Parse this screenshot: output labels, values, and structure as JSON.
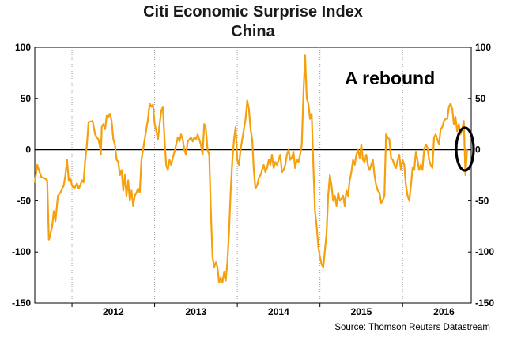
{
  "chart_data": {
    "type": "line",
    "title": "Citi Economic Surprise Index",
    "subtitle": "China",
    "source": "Source: Thomson Reuters Datastream",
    "annotation": "A rebound",
    "ylim": [
      -150,
      100
    ],
    "yticks": [
      100,
      50,
      0,
      -50,
      -100,
      -150
    ],
    "xlim": [
      2011.55,
      2016.83
    ],
    "year_labels": [
      "2012",
      "2013",
      "2014",
      "2015",
      "2016"
    ],
    "year_boundaries": [
      2012,
      2013,
      2014,
      2015,
      2016
    ],
    "grid": "vertical dotted lines at year boundaries",
    "line_color": "#f5a00f",
    "series": [
      {
        "values": [
          [
            2011.55,
            -32
          ],
          [
            2011.58,
            -15
          ],
          [
            2011.6,
            -20
          ],
          [
            2011.63,
            -27
          ],
          [
            2011.67,
            -28
          ],
          [
            2011.7,
            -30
          ],
          [
            2011.72,
            -88
          ],
          [
            2011.74,
            -82
          ],
          [
            2011.76,
            -75
          ],
          [
            2011.78,
            -60
          ],
          [
            2011.8,
            -70
          ],
          [
            2011.83,
            -45
          ],
          [
            2011.86,
            -42
          ],
          [
            2011.9,
            -35
          ],
          [
            2011.92,
            -25
          ],
          [
            2011.94,
            -10
          ],
          [
            2011.96,
            -30
          ],
          [
            2011.98,
            -28
          ],
          [
            2012.0,
            -35
          ],
          [
            2012.03,
            -38
          ],
          [
            2012.06,
            -33
          ],
          [
            2012.08,
            -38
          ],
          [
            2012.1,
            -35
          ],
          [
            2012.12,
            -30
          ],
          [
            2012.14,
            -32
          ],
          [
            2012.16,
            -10
          ],
          [
            2012.18,
            5
          ],
          [
            2012.2,
            27
          ],
          [
            2012.25,
            28
          ],
          [
            2012.28,
            15
          ],
          [
            2012.3,
            12
          ],
          [
            2012.32,
            10
          ],
          [
            2012.34,
            2
          ],
          [
            2012.35,
            -5
          ],
          [
            2012.36,
            22
          ],
          [
            2012.38,
            25
          ],
          [
            2012.4,
            20
          ],
          [
            2012.42,
            33
          ],
          [
            2012.44,
            32
          ],
          [
            2012.46,
            35
          ],
          [
            2012.48,
            28
          ],
          [
            2012.5,
            10
          ],
          [
            2012.52,
            5
          ],
          [
            2012.54,
            -10
          ],
          [
            2012.56,
            -12
          ],
          [
            2012.58,
            -25
          ],
          [
            2012.6,
            -20
          ],
          [
            2012.62,
            -40
          ],
          [
            2012.64,
            -25
          ],
          [
            2012.66,
            -45
          ],
          [
            2012.68,
            -30
          ],
          [
            2012.7,
            -50
          ],
          [
            2012.72,
            -40
          ],
          [
            2012.74,
            -55
          ],
          [
            2012.76,
            -45
          ],
          [
            2012.78,
            -42
          ],
          [
            2012.8,
            -38
          ],
          [
            2012.82,
            -42
          ],
          [
            2012.84,
            -10
          ],
          [
            2012.86,
            0
          ],
          [
            2012.88,
            10
          ],
          [
            2012.9,
            20
          ],
          [
            2012.92,
            30
          ],
          [
            2012.94,
            45
          ],
          [
            2012.96,
            42
          ],
          [
            2012.98,
            44
          ],
          [
            2013.0,
            25
          ],
          [
            2013.02,
            18
          ],
          [
            2013.04,
            10
          ],
          [
            2013.06,
            25
          ],
          [
            2013.08,
            38
          ],
          [
            2013.1,
            42
          ],
          [
            2013.12,
            10
          ],
          [
            2013.14,
            -15
          ],
          [
            2013.16,
            -20
          ],
          [
            2013.18,
            -10
          ],
          [
            2013.2,
            -15
          ],
          [
            2013.22,
            -8
          ],
          [
            2013.24,
            -2
          ],
          [
            2013.26,
            5
          ],
          [
            2013.28,
            12
          ],
          [
            2013.3,
            8
          ],
          [
            2013.32,
            15
          ],
          [
            2013.34,
            10
          ],
          [
            2013.36,
            0
          ],
          [
            2013.38,
            -5
          ],
          [
            2013.4,
            8
          ],
          [
            2013.42,
            10
          ],
          [
            2013.44,
            12
          ],
          [
            2013.46,
            8
          ],
          [
            2013.48,
            12
          ],
          [
            2013.5,
            10
          ],
          [
            2013.52,
            15
          ],
          [
            2013.54,
            10
          ],
          [
            2013.56,
            5
          ],
          [
            2013.58,
            -5
          ],
          [
            2013.6,
            25
          ],
          [
            2013.62,
            20
          ],
          [
            2013.64,
            0
          ],
          [
            2013.66,
            -5
          ],
          [
            2013.68,
            -60
          ],
          [
            2013.7,
            -105
          ],
          [
            2013.72,
            -115
          ],
          [
            2013.74,
            -110
          ],
          [
            2013.76,
            -115
          ],
          [
            2013.78,
            -130
          ],
          [
            2013.8,
            -125
          ],
          [
            2013.82,
            -130
          ],
          [
            2013.84,
            -120
          ],
          [
            2013.86,
            -128
          ],
          [
            2013.88,
            -110
          ],
          [
            2013.9,
            -80
          ],
          [
            2013.92,
            -40
          ],
          [
            2013.94,
            -10
          ],
          [
            2013.96,
            10
          ],
          [
            2013.98,
            22
          ],
          [
            2014.0,
            -10
          ],
          [
            2014.02,
            -15
          ],
          [
            2014.04,
            0
          ],
          [
            2014.06,
            10
          ],
          [
            2014.08,
            20
          ],
          [
            2014.1,
            30
          ],
          [
            2014.12,
            48
          ],
          [
            2014.14,
            40
          ],
          [
            2014.16,
            20
          ],
          [
            2014.18,
            10
          ],
          [
            2014.2,
            -20
          ],
          [
            2014.22,
            -38
          ],
          [
            2014.24,
            -35
          ],
          [
            2014.26,
            -28
          ],
          [
            2014.28,
            -25
          ],
          [
            2014.3,
            -20
          ],
          [
            2014.32,
            -15
          ],
          [
            2014.34,
            -22
          ],
          [
            2014.36,
            -18
          ],
          [
            2014.38,
            -10
          ],
          [
            2014.4,
            -15
          ],
          [
            2014.42,
            -5
          ],
          [
            2014.44,
            -18
          ],
          [
            2014.46,
            -12
          ],
          [
            2014.48,
            -15
          ],
          [
            2014.5,
            -10
          ],
          [
            2014.52,
            -5
          ],
          [
            2014.54,
            -22
          ],
          [
            2014.56,
            -20
          ],
          [
            2014.58,
            -15
          ],
          [
            2014.6,
            -5
          ],
          [
            2014.62,
            0
          ],
          [
            2014.64,
            -10
          ],
          [
            2014.66,
            -8
          ],
          [
            2014.68,
            -2
          ],
          [
            2014.7,
            -18
          ],
          [
            2014.72,
            -10
          ],
          [
            2014.74,
            -12
          ],
          [
            2014.76,
            -5
          ],
          [
            2014.78,
            5
          ],
          [
            2014.8,
            55
          ],
          [
            2014.82,
            92
          ],
          [
            2014.84,
            50
          ],
          [
            2014.86,
            45
          ],
          [
            2014.88,
            30
          ],
          [
            2014.9,
            35
          ],
          [
            2014.92,
            -15
          ],
          [
            2014.94,
            -60
          ],
          [
            2014.96,
            -75
          ],
          [
            2014.98,
            -95
          ],
          [
            2015.0,
            -105
          ],
          [
            2015.02,
            -112
          ],
          [
            2015.04,
            -115
          ],
          [
            2015.06,
            -98
          ],
          [
            2015.08,
            -82
          ],
          [
            2015.1,
            -45
          ],
          [
            2015.12,
            -25
          ],
          [
            2015.14,
            -35
          ],
          [
            2015.16,
            -50
          ],
          [
            2015.18,
            -45
          ],
          [
            2015.2,
            -55
          ],
          [
            2015.22,
            -42
          ],
          [
            2015.24,
            -50
          ],
          [
            2015.26,
            -48
          ],
          [
            2015.28,
            -45
          ],
          [
            2015.3,
            -55
          ],
          [
            2015.32,
            -40
          ],
          [
            2015.34,
            -45
          ],
          [
            2015.36,
            -30
          ],
          [
            2015.38,
            -22
          ],
          [
            2015.4,
            -10
          ],
          [
            2015.42,
            -15
          ],
          [
            2015.44,
            -5
          ],
          [
            2015.46,
            0
          ],
          [
            2015.48,
            -8
          ],
          [
            2015.5,
            5
          ],
          [
            2015.52,
            -10
          ],
          [
            2015.54,
            -12
          ],
          [
            2015.56,
            -5
          ],
          [
            2015.58,
            -15
          ],
          [
            2015.6,
            -20
          ],
          [
            2015.62,
            -15
          ],
          [
            2015.64,
            -10
          ],
          [
            2015.66,
            -25
          ],
          [
            2015.68,
            -35
          ],
          [
            2015.7,
            -40
          ],
          [
            2015.72,
            -42
          ],
          [
            2015.74,
            -52
          ],
          [
            2015.76,
            -50
          ],
          [
            2015.78,
            -45
          ],
          [
            2015.8,
            15
          ],
          [
            2015.82,
            12
          ],
          [
            2015.84,
            10
          ],
          [
            2015.86,
            -8
          ],
          [
            2015.88,
            -10
          ],
          [
            2015.9,
            -15
          ],
          [
            2015.92,
            -18
          ],
          [
            2015.94,
            -10
          ],
          [
            2015.96,
            -5
          ],
          [
            2015.98,
            -20
          ],
          [
            2016.0,
            -10
          ],
          [
            2016.02,
            -15
          ],
          [
            2016.04,
            -35
          ],
          [
            2016.06,
            -45
          ],
          [
            2016.08,
            -50
          ],
          [
            2016.1,
            -35
          ],
          [
            2016.12,
            -18
          ],
          [
            2016.14,
            -20
          ],
          [
            2016.16,
            -2
          ],
          [
            2016.18,
            -10
          ],
          [
            2016.2,
            -20
          ],
          [
            2016.22,
            -15
          ],
          [
            2016.24,
            -20
          ],
          [
            2016.26,
            0
          ],
          [
            2016.28,
            5
          ],
          [
            2016.3,
            2
          ],
          [
            2016.32,
            -10
          ],
          [
            2016.34,
            -15
          ],
          [
            2016.36,
            -18
          ],
          [
            2016.38,
            12
          ],
          [
            2016.4,
            15
          ],
          [
            2016.42,
            10
          ],
          [
            2016.44,
            5
          ],
          [
            2016.46,
            20
          ],
          [
            2016.48,
            22
          ],
          [
            2016.5,
            28
          ],
          [
            2016.52,
            30
          ],
          [
            2016.54,
            30
          ],
          [
            2016.56,
            42
          ],
          [
            2016.58,
            45
          ],
          [
            2016.6,
            40
          ],
          [
            2016.62,
            25
          ],
          [
            2016.64,
            32
          ],
          [
            2016.66,
            18
          ],
          [
            2016.68,
            25
          ],
          [
            2016.7,
            15
          ],
          [
            2016.72,
            20
          ],
          [
            2016.74,
            28
          ],
          [
            2016.76,
            -25
          ],
          [
            2016.78,
            0
          ]
        ]
      }
    ]
  }
}
